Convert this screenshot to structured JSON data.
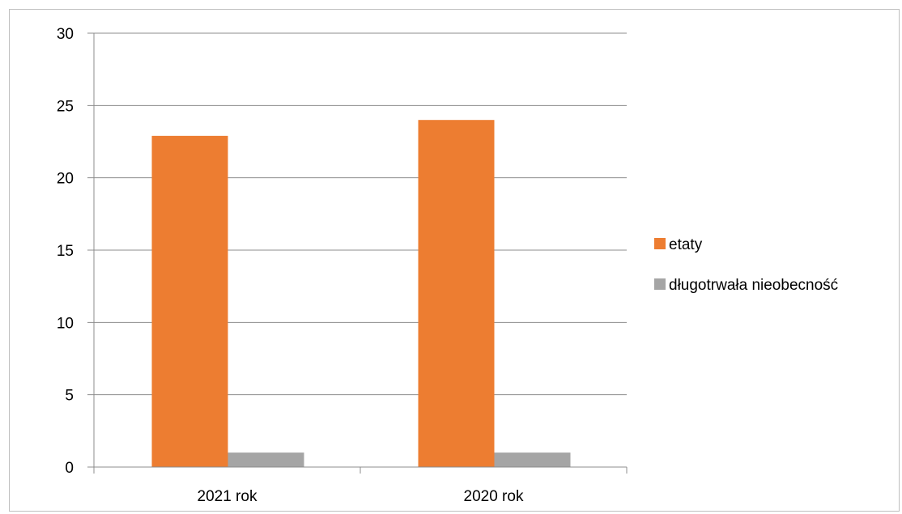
{
  "chart_data": {
    "type": "bar",
    "categories": [
      "2021 rok",
      "2020 rok"
    ],
    "series": [
      {
        "name": "etaty",
        "values": [
          22.9,
          24
        ],
        "color": "#ED7D31"
      },
      {
        "name": "długotrwała nieobecność",
        "values": [
          1,
          1
        ],
        "color": "#A5A5A5"
      }
    ],
    "ylim": [
      0,
      30
    ],
    "yticks": [
      0,
      5,
      10,
      15,
      20,
      25,
      30
    ],
    "grid": true,
    "legend_position": "right",
    "title": "",
    "xlabel": "",
    "ylabel": ""
  }
}
